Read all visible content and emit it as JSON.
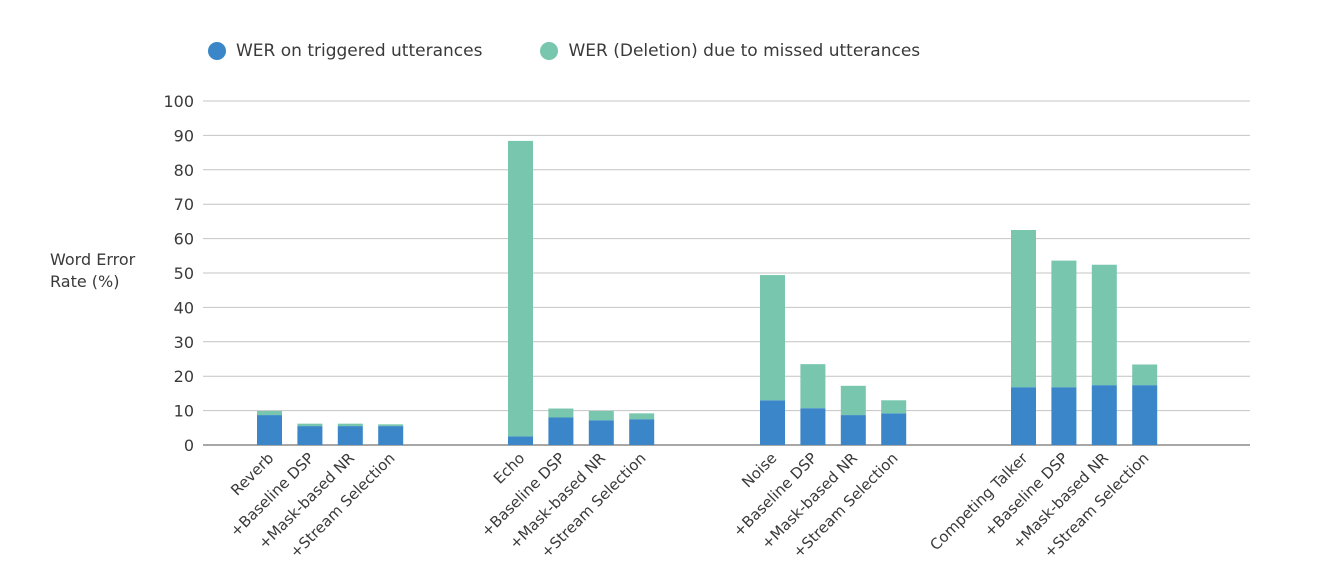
{
  "chart_data": {
    "type": "bar",
    "stacked": true,
    "ylabel_lines": [
      "Word Error",
      "Rate (%)"
    ],
    "ylim": [
      0,
      100
    ],
    "yticks": [
      0,
      10,
      20,
      30,
      40,
      50,
      60,
      70,
      80,
      90,
      100
    ],
    "grid": true,
    "legend_position": "top-left",
    "categories": [
      "Reverb",
      "+Baseline DSP",
      "+Mask-based NR",
      "+Stream Selection",
      "Echo",
      "+Baseline DSP",
      "+Mask-based NR",
      "+Stream Selection",
      "Noise",
      "+Baseline DSP",
      "+Mask-based NR",
      "+Stream Selection",
      "Competing Talker",
      "+Baseline DSP",
      "+Mask-based NR",
      "+Stream Selection"
    ],
    "series": [
      {
        "name": "WER on triggered utterances",
        "color": "#3a86c8",
        "values": [
          8.7,
          5.5,
          5.5,
          5.5,
          2.5,
          8.0,
          7.2,
          7.5,
          13.0,
          10.7,
          8.7,
          9.2,
          16.8,
          16.8,
          17.4,
          17.4
        ]
      },
      {
        "name": "WER (Deletion) due to missed utterances",
        "color": "#77c6ad",
        "values": [
          1.2,
          0.7,
          0.7,
          0.5,
          85.9,
          2.6,
          2.7,
          1.7,
          36.4,
          12.8,
          8.5,
          3.8,
          45.7,
          36.8,
          35.0,
          6.0
        ]
      }
    ]
  }
}
